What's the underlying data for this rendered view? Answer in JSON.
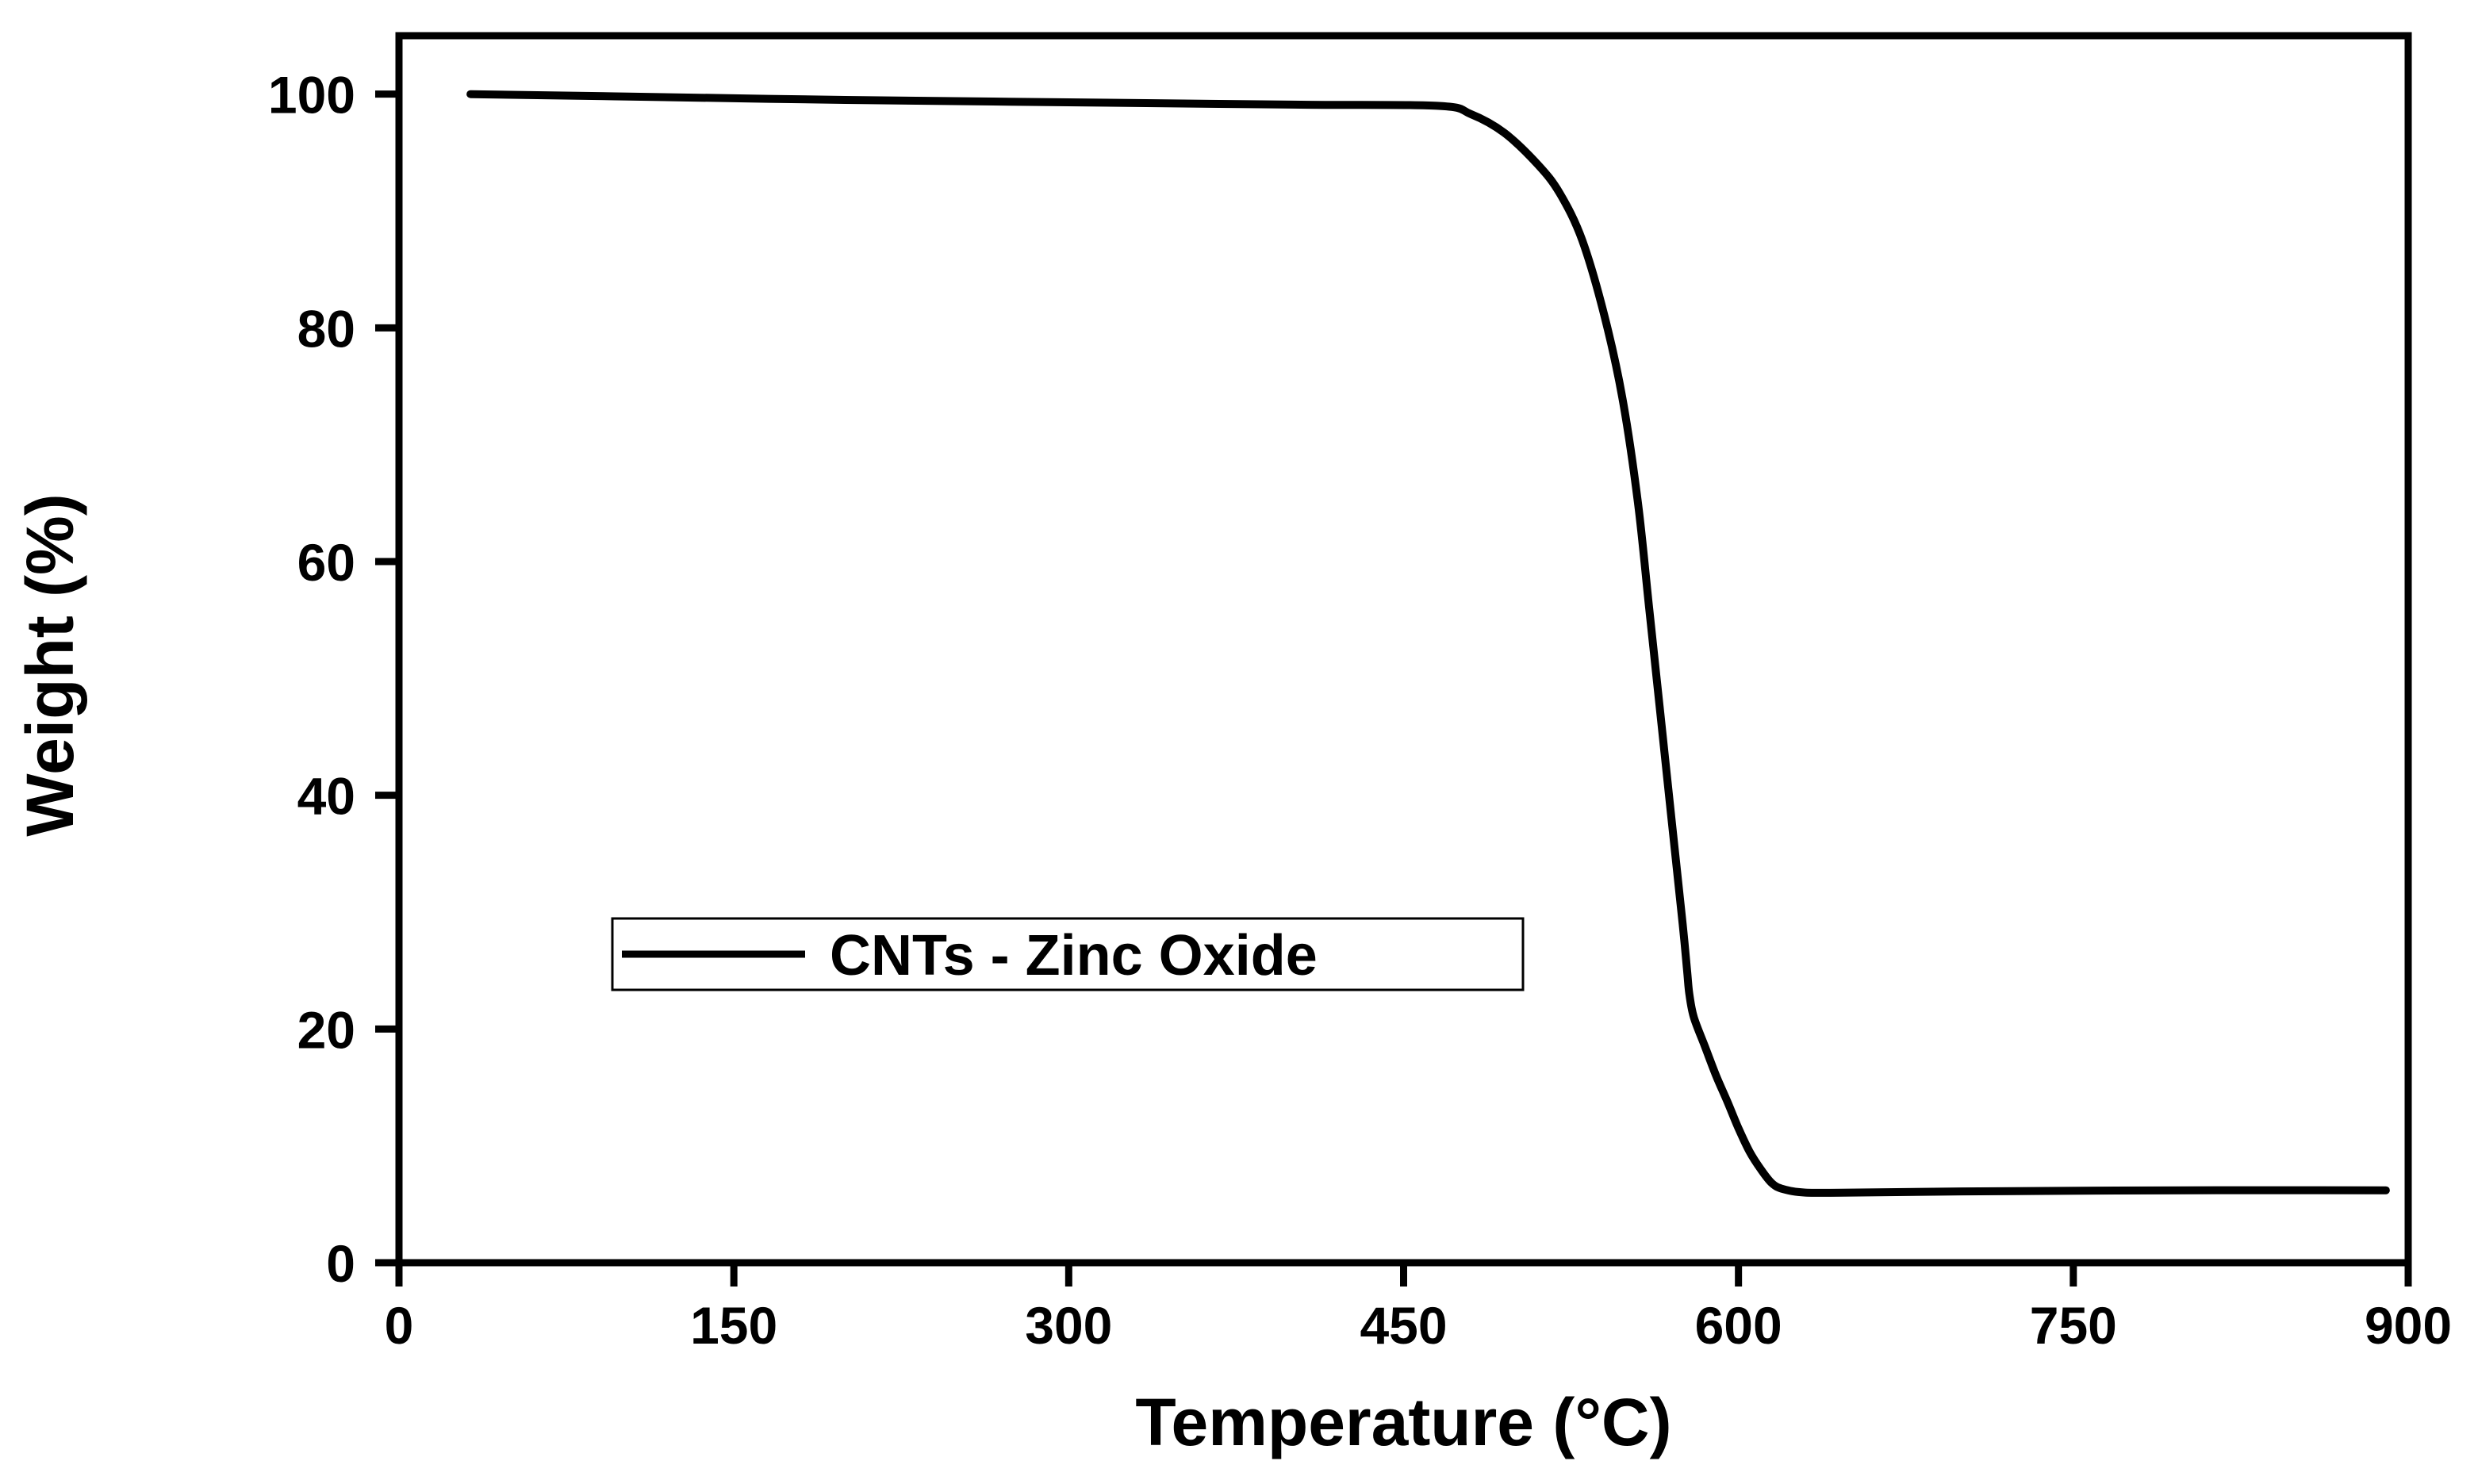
{
  "chart_data": {
    "type": "line",
    "xlabel": "Temperature (°C)",
    "ylabel": "Weight (%)",
    "xlim": [
      0,
      900
    ],
    "ylim": [
      0,
      105
    ],
    "xticks": [
      0,
      150,
      300,
      450,
      600,
      750,
      900
    ],
    "yticks": [
      0,
      20,
      40,
      60,
      80,
      100
    ],
    "grid": false,
    "legend_position": "center-left",
    "series": [
      {
        "name": "CNTs - Zinc Oxide",
        "color": "#000000",
        "x": [
          32,
          100,
          200,
          300,
          400,
          465,
          480,
          495,
          510,
          520,
          530,
          540,
          548,
          555,
          560,
          565,
          570,
          575,
          577,
          578,
          580,
          585,
          590,
          595,
          600,
          605,
          610,
          615,
          620,
          630,
          650,
          700,
          800,
          890
        ],
        "y": [
          100,
          99.8,
          99.5,
          99.3,
          99.1,
          99.0,
          98.3,
          96.7,
          94.0,
          91.5,
          87.5,
          81.0,
          74.0,
          65.0,
          56.0,
          47.0,
          38.0,
          29.0,
          25.0,
          23.0,
          21.0,
          18.5,
          16.0,
          13.8,
          11.5,
          9.5,
          8.0,
          6.8,
          6.3,
          6.0,
          6.0,
          6.1,
          6.2,
          6.2
        ]
      }
    ]
  }
}
